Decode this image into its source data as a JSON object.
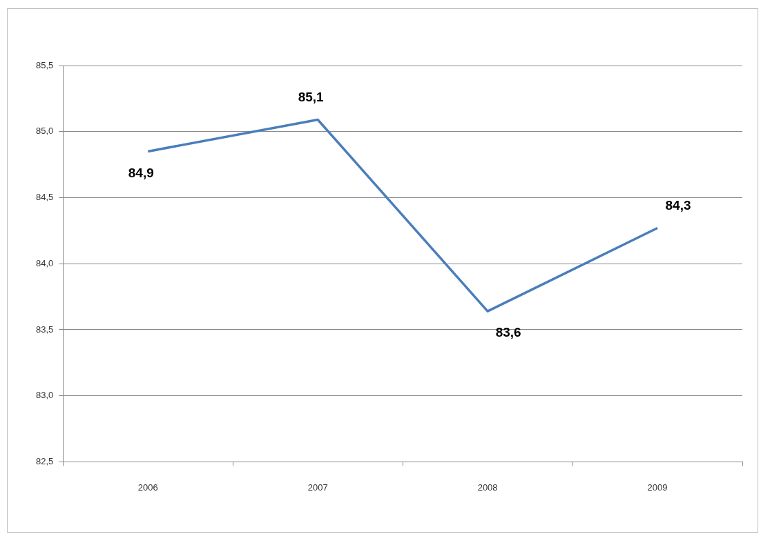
{
  "chart_data": {
    "type": "line",
    "categories": [
      "2006",
      "2007",
      "2008",
      "2009"
    ],
    "series": [
      {
        "color": "#4a7ebb",
        "values": [
          84.85,
          85.09,
          83.64,
          84.27
        ],
        "value_labels": [
          "84,9",
          "85,1",
          "83,6",
          "84,3"
        ]
      }
    ],
    "ylim": [
      82.5,
      85.5
    ],
    "yticks": [
      {
        "value": 82.5,
        "label": "82,5"
      },
      {
        "value": 83,
        "label": "83,0"
      },
      {
        "value": 83.5,
        "label": "83,5"
      },
      {
        "value": 84,
        "label": "84,0"
      },
      {
        "value": 84.5,
        "label": "84,5"
      },
      {
        "value": 85,
        "label": "85,0"
      },
      {
        "value": 85.5,
        "label": "85,5"
      }
    ],
    "grid": "y",
    "legend": false,
    "marker": "none",
    "line_style": "solid"
  }
}
